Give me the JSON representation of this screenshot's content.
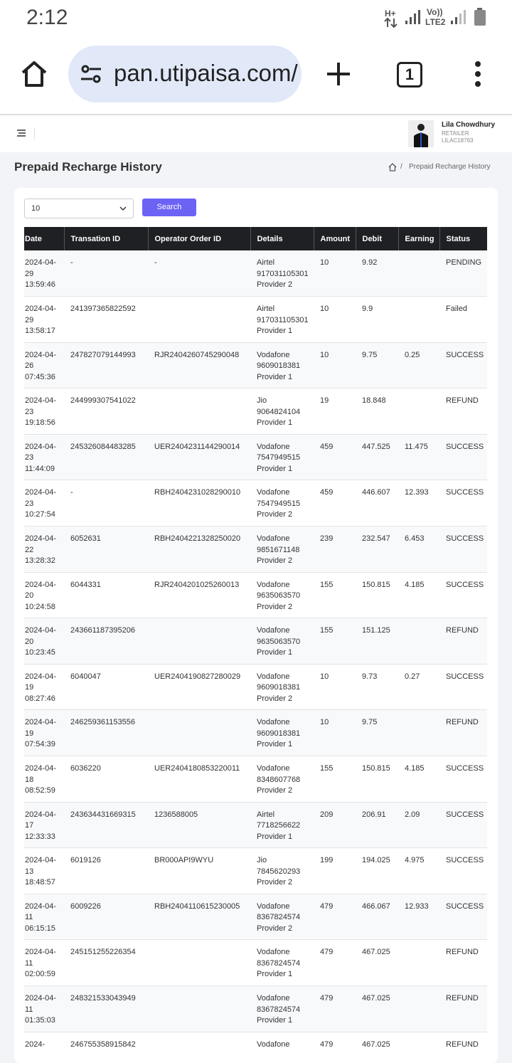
{
  "status_bar": {
    "time": "2:12",
    "network": "H+",
    "volte": "Vo))",
    "lte": "LTE2"
  },
  "browser": {
    "url": "pan.utipaisa.com/",
    "tab_count": "1"
  },
  "header": {
    "user_name": "Lila Chowdhury",
    "role": "RETAILER",
    "user_id": "LILAC18763"
  },
  "page": {
    "title": "Prepaid Recharge History",
    "breadcrumb": "Prepaid Recharge History"
  },
  "controls": {
    "page_size": "10",
    "search_button": "Search"
  },
  "table": {
    "columns": [
      "Date",
      "Transation ID",
      "Operator Order ID",
      "Details",
      "Amount",
      "Debit",
      "Earning",
      "Status"
    ],
    "rows": [
      {
        "date": "2024-04-29 13:59:46",
        "transaction_id": "-",
        "operator_order_id": "-",
        "operator": "Airtel",
        "number": "917031105301",
        "provider": "Provider 2",
        "amount": 10,
        "debit": 9.92,
        "status": "PENDING"
      },
      {
        "date": "2024-04-29 13:58:17",
        "transaction_id": "241397365822592",
        "operator": "Airtel",
        "number": "917031105301",
        "provider": "Provider 1",
        "amount": 10,
        "debit": 9.9,
        "status": "Failed"
      },
      {
        "date": "2024-04-26 07:45:36",
        "transaction_id": "247827079144993",
        "operator_order_id": "RJR2404260745290048",
        "operator": "Vodafone",
        "number": "9609018381",
        "provider": "Provider 1",
        "amount": 10,
        "debit": 9.75,
        "earning": 0.25,
        "status": "SUCCESS"
      },
      {
        "date": "2024-04-23 19:18:56",
        "transaction_id": "244999307541022",
        "operator": "Jio",
        "number": "9064824104",
        "provider": "Provider 1",
        "amount": 19,
        "debit": 18.848,
        "status": "REFUND"
      },
      {
        "date": "2024-04-23 11:44:09",
        "transaction_id": "245326084483285",
        "operator_order_id": "UER2404231144290014",
        "operator": "Vodafone",
        "number": "7547949515",
        "provider": "Provider 1",
        "amount": 459,
        "debit": 447.525,
        "earning": 11.475,
        "status": "SUCCESS"
      },
      {
        "date": "2024-04-23 10:27:54",
        "transaction_id": "-",
        "operator_order_id": "RBH2404231028290010",
        "operator": "Vodafone",
        "number": "7547949515",
        "provider": "Provider 2",
        "amount": 459,
        "debit": 446.607,
        "earning": 12.393,
        "status": "SUCCESS"
      },
      {
        "date": "2024-04-22 13:28:32",
        "transaction_id": "6052631",
        "operator_order_id": "RBH2404221328250020",
        "operator": "Vodafone",
        "number": "9851671148",
        "provider": "Provider 2",
        "amount": 239,
        "debit": 232.547,
        "earning": 6.453,
        "status": "SUCCESS"
      },
      {
        "date": "2024-04-20 10:24:58",
        "transaction_id": "6044331",
        "operator_order_id": "RJR2404201025260013",
        "operator": "Vodafone",
        "number": "9635063570",
        "provider": "Provider 2",
        "amount": 155,
        "debit": 150.815,
        "earning": 4.185,
        "status": "SUCCESS"
      },
      {
        "date": "2024-04-20 10:23:45",
        "transaction_id": "243661187395206",
        "operator": "Vodafone",
        "number": "9635063570",
        "provider": "Provider 1",
        "amount": 155,
        "debit": 151.125,
        "status": "REFUND"
      },
      {
        "date": "2024-04-19 08:27:46",
        "transaction_id": "6040047",
        "operator_order_id": "UER2404190827280029",
        "operator": "Vodafone",
        "number": "9609018381",
        "provider": "Provider 2",
        "amount": 10,
        "debit": 9.73,
        "earning": 0.27,
        "status": "SUCCESS"
      },
      {
        "date": "2024-04-19 07:54:39",
        "transaction_id": "246259361153556",
        "operator": "Vodafone",
        "number": "9609018381",
        "provider": "Provider 1",
        "amount": 10,
        "debit": 9.75,
        "status": "REFUND"
      },
      {
        "date": "2024-04-18 08:52:59",
        "transaction_id": "6036220",
        "operator_order_id": "UER2404180853220011",
        "operator": "Vodafone",
        "number": "8348607768",
        "provider": "Provider 2",
        "amount": 155,
        "debit": 150.815,
        "earning": 4.185,
        "status": "SUCCESS"
      },
      {
        "date": "2024-04-17 12:33:33",
        "transaction_id": "243634431669315",
        "operator_order_id": "1236588005",
        "operator": "Airtel",
        "number": "7718256622",
        "provider": "Provider 1",
        "amount": 209,
        "debit": 206.91,
        "earning": 2.09,
        "status": "SUCCESS"
      },
      {
        "date": "2024-04-13 18:48:57",
        "transaction_id": "6019126",
        "operator_order_id": "BR000API9WYU",
        "operator": "Jio",
        "number": "7845620293",
        "provider": "Provider 2",
        "amount": 199,
        "debit": 194.025,
        "earning": 4.975,
        "status": "SUCCESS"
      },
      {
        "date": "2024-04-11 06:15:15",
        "transaction_id": "6009226",
        "operator_order_id": "RBH2404110615230005",
        "operator": "Vodafone",
        "number": "8367824574",
        "provider": "Provider 2",
        "amount": 479,
        "debit": 466.067,
        "earning": 12.933,
        "status": "SUCCESS"
      },
      {
        "date": "2024-04-11 02:00:59",
        "transaction_id": "245151255226354",
        "operator": "Vodafone",
        "number": "8367824574",
        "provider": "Provider 1",
        "amount": 479,
        "debit": 467.025,
        "status": "REFUND"
      },
      {
        "date": "2024-04-11 01:35:03",
        "transaction_id": "248321533043949",
        "operator": "Vodafone",
        "number": "8367824574",
        "provider": "Provider 1",
        "amount": 479,
        "debit": 467.025,
        "status": "REFUND"
      },
      {
        "date": "2024-",
        "transaction_id": "246755358915842",
        "operator": "Vodafone",
        "amount": 479,
        "debit": 467.025,
        "status": "REFUND"
      }
    ]
  }
}
